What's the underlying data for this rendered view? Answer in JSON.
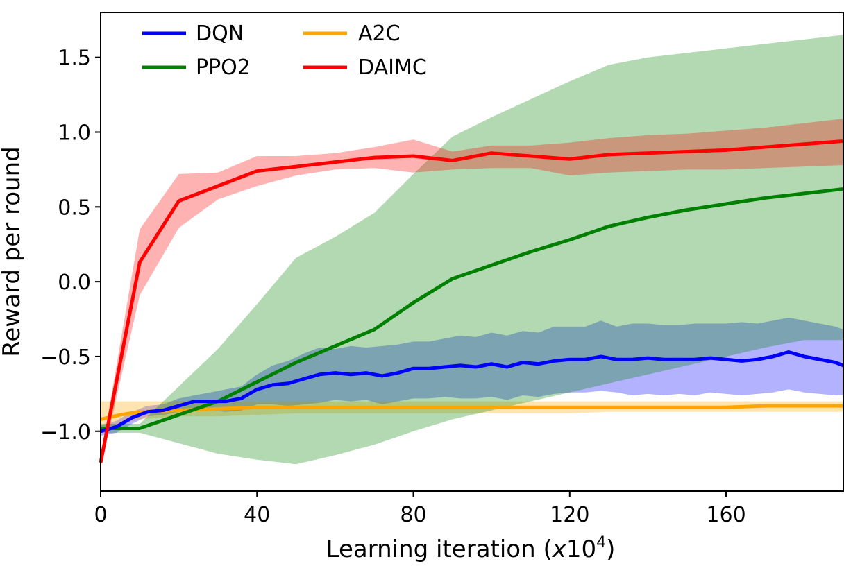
{
  "chart_data": {
    "type": "line",
    "xlabel_main": "Learning iteration (",
    "xlabel_var": "x",
    "xlabel_base": "10",
    "xlabel_exp": "4",
    "xlabel_close": ")",
    "ylabel": "Reward per round",
    "xlim": [
      0,
      190
    ],
    "ylim": [
      -1.4,
      1.8
    ],
    "xticks": [
      0,
      40,
      80,
      120,
      160
    ],
    "yticks": [
      1.5,
      1.0,
      0.5,
      0.0,
      -0.5,
      -1.0
    ],
    "ytick_labels": [
      "1.5",
      "1.0",
      "0.5",
      "0.0",
      "−0.5",
      "−1.0"
    ],
    "xtick_labels": [
      "0",
      "40",
      "80",
      "120",
      "160"
    ],
    "grid": false,
    "legend_position": "upper-left",
    "series": [
      {
        "name": "DQN",
        "color": "#0000ff",
        "band_color": "#0000ff",
        "x": [
          0,
          4,
          8,
          12,
          16,
          20,
          24,
          28,
          32,
          36,
          40,
          44,
          48,
          52,
          56,
          60,
          64,
          68,
          72,
          76,
          80,
          84,
          88,
          92,
          96,
          100,
          104,
          108,
          112,
          116,
          120,
          124,
          128,
          132,
          136,
          140,
          144,
          148,
          152,
          156,
          160,
          164,
          168,
          172,
          176,
          180,
          184,
          188,
          190
        ],
        "y": [
          -1.0,
          -0.97,
          -0.91,
          -0.87,
          -0.86,
          -0.83,
          -0.8,
          -0.8,
          -0.8,
          -0.78,
          -0.72,
          -0.69,
          -0.68,
          -0.65,
          -0.62,
          -0.61,
          -0.62,
          -0.61,
          -0.63,
          -0.61,
          -0.58,
          -0.58,
          -0.57,
          -0.56,
          -0.57,
          -0.55,
          -0.57,
          -0.54,
          -0.55,
          -0.53,
          -0.52,
          -0.52,
          -0.5,
          -0.52,
          -0.52,
          -0.51,
          -0.52,
          -0.52,
          -0.52,
          -0.51,
          -0.52,
          -0.53,
          -0.52,
          -0.5,
          -0.47,
          -0.5,
          -0.52,
          -0.54,
          -0.56
        ],
        "upper": [
          -0.96,
          -0.93,
          -0.87,
          -0.83,
          -0.82,
          -0.78,
          -0.76,
          -0.74,
          -0.72,
          -0.7,
          -0.62,
          -0.56,
          -0.53,
          -0.48,
          -0.44,
          -0.45,
          -0.43,
          -0.44,
          -0.43,
          -0.42,
          -0.4,
          -0.4,
          -0.38,
          -0.36,
          -0.37,
          -0.34,
          -0.36,
          -0.33,
          -0.34,
          -0.3,
          -0.3,
          -0.3,
          -0.26,
          -0.3,
          -0.28,
          -0.28,
          -0.29,
          -0.29,
          -0.28,
          -0.28,
          -0.28,
          -0.27,
          -0.28,
          -0.26,
          -0.24,
          -0.26,
          -0.28,
          -0.3,
          -0.32
        ],
        "lower": [
          -1.03,
          -1.01,
          -0.95,
          -0.9,
          -0.89,
          -0.87,
          -0.85,
          -0.86,
          -0.87,
          -0.86,
          -0.82,
          -0.82,
          -0.83,
          -0.82,
          -0.81,
          -0.79,
          -0.8,
          -0.79,
          -0.82,
          -0.8,
          -0.78,
          -0.78,
          -0.77,
          -0.78,
          -0.78,
          -0.77,
          -0.79,
          -0.76,
          -0.77,
          -0.75,
          -0.74,
          -0.74,
          -0.73,
          -0.74,
          -0.76,
          -0.75,
          -0.76,
          -0.75,
          -0.76,
          -0.74,
          -0.75,
          -0.76,
          -0.75,
          -0.74,
          -0.72,
          -0.74,
          -0.75,
          -0.76,
          -0.76
        ]
      },
      {
        "name": "A2C",
        "color": "#ffa500",
        "band_color": "#ffa500",
        "x": [
          0,
          5,
          10,
          20,
          30,
          40,
          50,
          60,
          70,
          80,
          90,
          100,
          110,
          120,
          130,
          140,
          150,
          160,
          170,
          180,
          190
        ],
        "y": [
          -0.92,
          -0.89,
          -0.87,
          -0.86,
          -0.85,
          -0.84,
          -0.84,
          -0.84,
          -0.84,
          -0.84,
          -0.84,
          -0.84,
          -0.84,
          -0.84,
          -0.84,
          -0.84,
          -0.84,
          -0.84,
          -0.83,
          -0.83,
          -0.83
        ],
        "upper": [
          -0.8,
          -0.8,
          -0.8,
          -0.8,
          -0.8,
          -0.8,
          -0.8,
          -0.8,
          -0.8,
          -0.8,
          -0.8,
          -0.8,
          -0.8,
          -0.8,
          -0.8,
          -0.8,
          -0.8,
          -0.8,
          -0.8,
          -0.8,
          -0.8
        ],
        "lower": [
          -1.0,
          -0.95,
          -0.92,
          -0.9,
          -0.9,
          -0.89,
          -0.88,
          -0.88,
          -0.88,
          -0.88,
          -0.88,
          -0.88,
          -0.88,
          -0.88,
          -0.87,
          -0.87,
          -0.87,
          -0.87,
          -0.87,
          -0.87,
          -0.87
        ]
      },
      {
        "name": "PPO2",
        "color": "#008000",
        "band_color": "#008000",
        "x": [
          0,
          10,
          20,
          30,
          40,
          50,
          60,
          70,
          80,
          90,
          100,
          110,
          120,
          130,
          140,
          150,
          160,
          170,
          180,
          190
        ],
        "y": [
          -0.98,
          -0.98,
          -0.89,
          -0.8,
          -0.67,
          -0.54,
          -0.43,
          -0.32,
          -0.14,
          0.02,
          0.11,
          0.2,
          0.28,
          0.37,
          0.43,
          0.48,
          0.52,
          0.56,
          0.59,
          0.62
        ],
        "upper": [
          -0.95,
          -0.95,
          -0.7,
          -0.45,
          -0.15,
          0.16,
          0.3,
          0.46,
          0.72,
          0.97,
          1.1,
          1.22,
          1.34,
          1.45,
          1.5,
          1.53,
          1.56,
          1.59,
          1.62,
          1.65
        ],
        "lower": [
          -1.01,
          -1.01,
          -1.08,
          -1.15,
          -1.19,
          -1.22,
          -1.16,
          -1.09,
          -1.0,
          -0.92,
          -0.86,
          -0.8,
          -0.74,
          -0.68,
          -0.62,
          -0.56,
          -0.5,
          -0.44,
          -0.39,
          -0.39
        ]
      },
      {
        "name": "DAIMC",
        "color": "#ff0000",
        "band_color": "#ff0000",
        "x": [
          0,
          10,
          20,
          30,
          40,
          50,
          60,
          70,
          80,
          90,
          100,
          110,
          120,
          130,
          140,
          150,
          160,
          170,
          180,
          190
        ],
        "y": [
          -1.21,
          0.13,
          0.54,
          0.64,
          0.74,
          0.77,
          0.8,
          0.83,
          0.84,
          0.81,
          0.86,
          0.84,
          0.82,
          0.85,
          0.86,
          0.87,
          0.88,
          0.9,
          0.92,
          0.94
        ],
        "upper": [
          -1.18,
          0.35,
          0.72,
          0.73,
          0.84,
          0.84,
          0.86,
          0.9,
          0.95,
          0.87,
          0.91,
          0.91,
          0.93,
          0.96,
          0.98,
          0.99,
          1.01,
          1.03,
          1.06,
          1.09
        ],
        "lower": [
          -1.24,
          -0.09,
          0.36,
          0.55,
          0.64,
          0.71,
          0.75,
          0.76,
          0.73,
          0.75,
          0.76,
          0.76,
          0.71,
          0.73,
          0.74,
          0.75,
          0.75,
          0.76,
          0.77,
          0.78
        ]
      }
    ]
  }
}
